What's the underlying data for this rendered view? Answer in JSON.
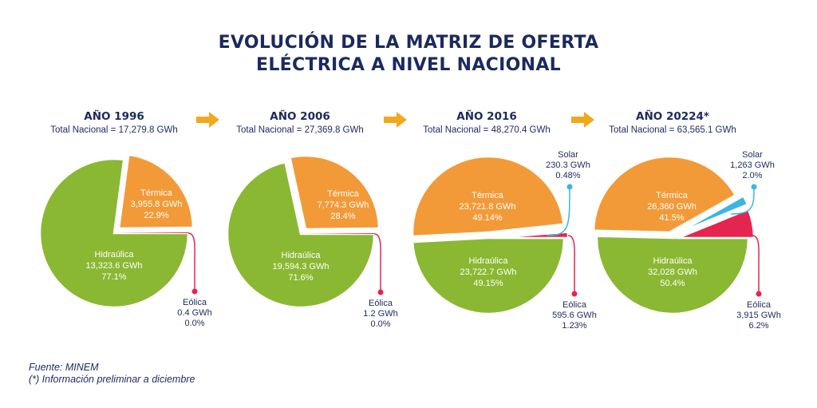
{
  "title": {
    "line1": "EVOLUCIÓN DE LA MATRIZ DE OFERTA",
    "line2": "ELÉCTRICA A NIVEL NACIONAL"
  },
  "colors": {
    "hidraulica": "#8ab833",
    "termica": "#f29a38",
    "eolica": "#e5254f",
    "solar": "#3bb5e4",
    "text_dark": "#1b2a5e",
    "arrow": "#f2a81d"
  },
  "chart_data": [
    {
      "type": "pie",
      "title": "AÑO 1996",
      "subtitle": "Total Nacional = 17,279.8 GWh",
      "unit": "GWh",
      "slices": [
        {
          "name": "Hidraúlica",
          "value": 13323.6,
          "value_label": "13,323.6 GWh",
          "pct_label": "77.1%",
          "color_key": "hidraulica"
        },
        {
          "name": "Térmica",
          "value": 3955.8,
          "value_label": "3,955.8 GWh",
          "pct_label": "22.9%",
          "color_key": "termica"
        },
        {
          "name": "Eólica",
          "value": 0.4,
          "value_label": "0.4 GWh",
          "pct_label": "0.0%",
          "color_key": "eolica"
        }
      ]
    },
    {
      "type": "pie",
      "title": "AÑO 2006",
      "subtitle": "Total Nacional = 27,369.8 GWh",
      "unit": "GWh",
      "slices": [
        {
          "name": "Hidraúlica",
          "value": 19594.3,
          "value_label": "19,594.3 GWh",
          "pct_label": "71.6%",
          "color_key": "hidraulica"
        },
        {
          "name": "Térmica",
          "value": 7774.3,
          "value_label": "7,774.3 GWh",
          "pct_label": "28.4%",
          "color_key": "termica"
        },
        {
          "name": "Eólica",
          "value": 1.2,
          "value_label": "1.2 GWh",
          "pct_label": "0.0%",
          "color_key": "eolica"
        }
      ]
    },
    {
      "type": "pie",
      "title": "AÑO 2016",
      "subtitle": "Total Nacional = 48,270.4 GWh",
      "unit": "GWh",
      "slices": [
        {
          "name": "Hidraúlica",
          "value": 23722.7,
          "value_label": "23,722.7 GWh",
          "pct_label": "49.15%",
          "color_key": "hidraulica"
        },
        {
          "name": "Térmica",
          "value": 23721.8,
          "value_label": "23,721.8 GWh",
          "pct_label": "49.14%",
          "color_key": "termica"
        },
        {
          "name": "Solar",
          "value": 230.3,
          "value_label": "230.3 GWh",
          "pct_label": "0.48%",
          "color_key": "solar"
        },
        {
          "name": "Eólica",
          "value": 595.6,
          "value_label": "595.6 GWh",
          "pct_label": "1.23%",
          "color_key": "eolica"
        }
      ]
    },
    {
      "type": "pie",
      "title": "AÑO 20224*",
      "subtitle": "Total Nacional = 63,565.1 GWh",
      "unit": "GWh",
      "slices": [
        {
          "name": "Hidraúlica",
          "value": 32028,
          "value_label": "32,028 GWh",
          "pct_label": "50.4%",
          "color_key": "hidraulica"
        },
        {
          "name": "Térmica",
          "value": 26360,
          "value_label": "26,360 GWh",
          "pct_label": "41.5%",
          "color_key": "termica"
        },
        {
          "name": "Solar",
          "value": 1263,
          "value_label": "1,263 GWh",
          "pct_label": "2.0%",
          "color_key": "solar"
        },
        {
          "name": "Eólica",
          "value": 3915,
          "value_label": "3,915 GWh",
          "pct_label": "6.2%",
          "color_key": "eolica"
        }
      ]
    }
  ],
  "footer": {
    "source": "Fuente: MINEM",
    "note": "(*) Información preliminar a diciembre"
  }
}
